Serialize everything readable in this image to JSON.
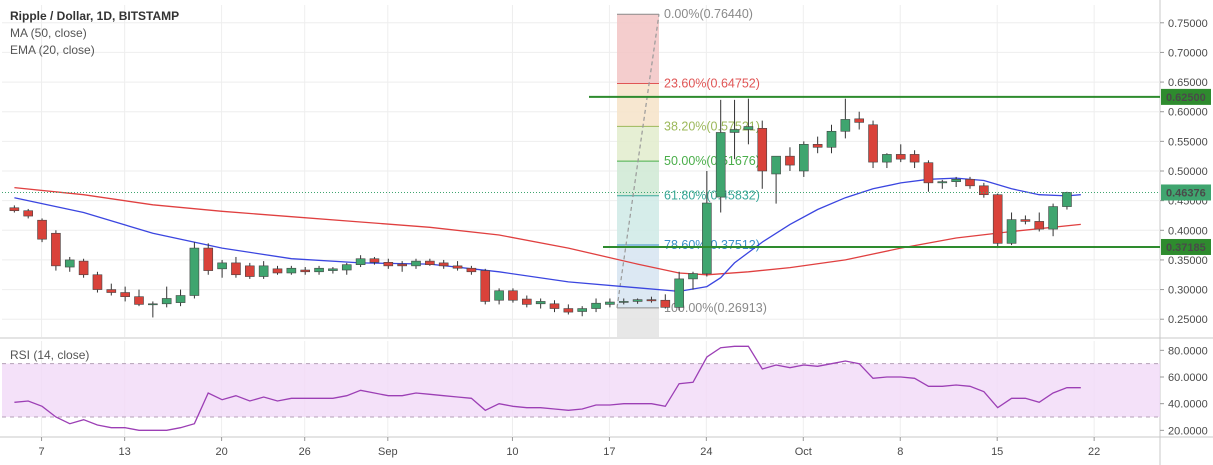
{
  "legend": {
    "title": "Ripple / Dollar, 1D, BITSTAMP",
    "ma": "MA (50, close)",
    "ema": "EMA (20, close)",
    "rsi": "RSI (14, close)"
  },
  "colors": {
    "up": "#3fa56f",
    "down": "#d9423a",
    "wick": "#333333",
    "ema": "#3b46e0",
    "ma": "#e04040",
    "hline": "#2e8b2e",
    "rsi": "#9c3fb5",
    "rsi_band": "#f1d9f7"
  },
  "chart_data": [
    {
      "type": "candlestick",
      "title": "Ripple / Dollar, 1D, BITSTAMP",
      "x_axis": {
        "ticks": [
          "7",
          "13",
          "20",
          "26",
          "Sep",
          "10",
          "17",
          "24",
          "Oct",
          "8",
          "15",
          "22"
        ],
        "tick_days": [
          7,
          13,
          20,
          26,
          32,
          41,
          48,
          55,
          62,
          69,
          76,
          83
        ]
      },
      "y_axis": {
        "ticks": [
          "0.25000",
          "0.30000",
          "0.35000",
          "0.40000",
          "0.45000",
          "0.50000",
          "0.55000",
          "0.60000",
          "0.65000",
          "0.70000",
          "0.75000"
        ],
        "ylim": [
          0.22,
          0.78
        ]
      },
      "price_labels": [
        {
          "text": "0.62500",
          "value": 0.625,
          "color": "#2e8b2e"
        },
        {
          "text": "0.46376",
          "value": 0.46376,
          "color": "#3fa56f"
        },
        {
          "text": "0.37185",
          "value": 0.37185,
          "color": "#2e8b2e"
        }
      ],
      "horizontal_lines": [
        0.625,
        0.37185
      ],
      "current_price": 0.46376,
      "candles": [
        {
          "o": 0.438,
          "h": 0.442,
          "l": 0.43,
          "c": 0.433
        },
        {
          "o": 0.433,
          "h": 0.436,
          "l": 0.42,
          "c": 0.424
        },
        {
          "o": 0.417,
          "h": 0.42,
          "l": 0.38,
          "c": 0.385
        },
        {
          "o": 0.395,
          "h": 0.4,
          "l": 0.332,
          "c": 0.34
        },
        {
          "o": 0.338,
          "h": 0.355,
          "l": 0.33,
          "c": 0.35
        },
        {
          "o": 0.348,
          "h": 0.352,
          "l": 0.32,
          "c": 0.325
        },
        {
          "o": 0.325,
          "h": 0.33,
          "l": 0.295,
          "c": 0.3
        },
        {
          "o": 0.3,
          "h": 0.31,
          "l": 0.29,
          "c": 0.295
        },
        {
          "o": 0.295,
          "h": 0.305,
          "l": 0.28,
          "c": 0.288
        },
        {
          "o": 0.288,
          "h": 0.3,
          "l": 0.272,
          "c": 0.275
        },
        {
          "o": 0.275,
          "h": 0.28,
          "l": 0.253,
          "c": 0.276
        },
        {
          "o": 0.276,
          "h": 0.305,
          "l": 0.27,
          "c": 0.285
        },
        {
          "o": 0.278,
          "h": 0.3,
          "l": 0.272,
          "c": 0.29
        },
        {
          "o": 0.29,
          "h": 0.38,
          "l": 0.285,
          "c": 0.37
        },
        {
          "o": 0.37,
          "h": 0.378,
          "l": 0.325,
          "c": 0.332
        },
        {
          "o": 0.335,
          "h": 0.35,
          "l": 0.32,
          "c": 0.345
        },
        {
          "o": 0.345,
          "h": 0.355,
          "l": 0.32,
          "c": 0.325
        },
        {
          "o": 0.34,
          "h": 0.345,
          "l": 0.318,
          "c": 0.322
        },
        {
          "o": 0.322,
          "h": 0.348,
          "l": 0.318,
          "c": 0.34
        },
        {
          "o": 0.335,
          "h": 0.34,
          "l": 0.325,
          "c": 0.328
        },
        {
          "o": 0.328,
          "h": 0.34,
          "l": 0.325,
          "c": 0.336
        },
        {
          "o": 0.333,
          "h": 0.338,
          "l": 0.325,
          "c": 0.33
        },
        {
          "o": 0.33,
          "h": 0.34,
          "l": 0.325,
          "c": 0.336
        },
        {
          "o": 0.332,
          "h": 0.338,
          "l": 0.327,
          "c": 0.335
        },
        {
          "o": 0.333,
          "h": 0.345,
          "l": 0.325,
          "c": 0.342
        },
        {
          "o": 0.342,
          "h": 0.358,
          "l": 0.338,
          "c": 0.352
        },
        {
          "o": 0.352,
          "h": 0.355,
          "l": 0.342,
          "c": 0.346
        },
        {
          "o": 0.346,
          "h": 0.352,
          "l": 0.335,
          "c": 0.34
        },
        {
          "o": 0.343,
          "h": 0.348,
          "l": 0.33,
          "c": 0.34
        },
        {
          "o": 0.34,
          "h": 0.352,
          "l": 0.335,
          "c": 0.348
        },
        {
          "o": 0.348,
          "h": 0.352,
          "l": 0.34,
          "c": 0.342
        },
        {
          "o": 0.345,
          "h": 0.35,
          "l": 0.335,
          "c": 0.34
        },
        {
          "o": 0.34,
          "h": 0.348,
          "l": 0.332,
          "c": 0.336
        },
        {
          "o": 0.336,
          "h": 0.34,
          "l": 0.325,
          "c": 0.33
        },
        {
          "o": 0.332,
          "h": 0.335,
          "l": 0.275,
          "c": 0.28
        },
        {
          "o": 0.282,
          "h": 0.302,
          "l": 0.275,
          "c": 0.298
        },
        {
          "o": 0.298,
          "h": 0.302,
          "l": 0.278,
          "c": 0.282
        },
        {
          "o": 0.284,
          "h": 0.29,
          "l": 0.27,
          "c": 0.275
        },
        {
          "o": 0.276,
          "h": 0.285,
          "l": 0.268,
          "c": 0.28
        },
        {
          "o": 0.276,
          "h": 0.282,
          "l": 0.262,
          "c": 0.268
        },
        {
          "o": 0.268,
          "h": 0.275,
          "l": 0.258,
          "c": 0.262
        },
        {
          "o": 0.263,
          "h": 0.272,
          "l": 0.255,
          "c": 0.268
        },
        {
          "o": 0.268,
          "h": 0.285,
          "l": 0.262,
          "c": 0.277
        },
        {
          "o": 0.275,
          "h": 0.285,
          "l": 0.27,
          "c": 0.279
        },
        {
          "o": 0.279,
          "h": 0.285,
          "l": 0.275,
          "c": 0.28
        },
        {
          "o": 0.28,
          "h": 0.285,
          "l": 0.276,
          "c": 0.283
        },
        {
          "o": 0.283,
          "h": 0.288,
          "l": 0.278,
          "c": 0.281
        },
        {
          "o": 0.282,
          "h": 0.292,
          "l": 0.268,
          "c": 0.27
        },
        {
          "o": 0.27,
          "h": 0.33,
          "l": 0.265,
          "c": 0.318
        },
        {
          "o": 0.318,
          "h": 0.33,
          "l": 0.3,
          "c": 0.327
        },
        {
          "o": 0.327,
          "h": 0.5,
          "l": 0.322,
          "c": 0.446
        },
        {
          "o": 0.456,
          "h": 0.62,
          "l": 0.43,
          "c": 0.565
        },
        {
          "o": 0.565,
          "h": 0.62,
          "l": 0.52,
          "c": 0.57
        },
        {
          "o": 0.57,
          "h": 0.622,
          "l": 0.545,
          "c": 0.575
        },
        {
          "o": 0.572,
          "h": 0.585,
          "l": 0.47,
          "c": 0.5
        },
        {
          "o": 0.495,
          "h": 0.525,
          "l": 0.445,
          "c": 0.525
        },
        {
          "o": 0.525,
          "h": 0.54,
          "l": 0.5,
          "c": 0.51
        },
        {
          "o": 0.5,
          "h": 0.55,
          "l": 0.49,
          "c": 0.545
        },
        {
          "o": 0.545,
          "h": 0.558,
          "l": 0.53,
          "c": 0.54
        },
        {
          "o": 0.54,
          "h": 0.578,
          "l": 0.53,
          "c": 0.567
        },
        {
          "o": 0.567,
          "h": 0.622,
          "l": 0.555,
          "c": 0.587
        },
        {
          "o": 0.588,
          "h": 0.6,
          "l": 0.57,
          "c": 0.582
        },
        {
          "o": 0.578,
          "h": 0.585,
          "l": 0.505,
          "c": 0.515
        },
        {
          "o": 0.515,
          "h": 0.53,
          "l": 0.505,
          "c": 0.528
        },
        {
          "o": 0.528,
          "h": 0.545,
          "l": 0.515,
          "c": 0.52
        },
        {
          "o": 0.528,
          "h": 0.535,
          "l": 0.505,
          "c": 0.515
        },
        {
          "o": 0.514,
          "h": 0.518,
          "l": 0.465,
          "c": 0.48
        },
        {
          "o": 0.48,
          "h": 0.485,
          "l": 0.47,
          "c": 0.482
        },
        {
          "o": 0.482,
          "h": 0.49,
          "l": 0.473,
          "c": 0.486
        },
        {
          "o": 0.486,
          "h": 0.49,
          "l": 0.47,
          "c": 0.475
        },
        {
          "o": 0.475,
          "h": 0.48,
          "l": 0.455,
          "c": 0.46
        },
        {
          "o": 0.46,
          "h": 0.462,
          "l": 0.37,
          "c": 0.378
        },
        {
          "o": 0.378,
          "h": 0.43,
          "l": 0.375,
          "c": 0.418
        },
        {
          "o": 0.418,
          "h": 0.425,
          "l": 0.41,
          "c": 0.415
        },
        {
          "o": 0.415,
          "h": 0.43,
          "l": 0.398,
          "c": 0.402
        },
        {
          "o": 0.402,
          "h": 0.445,
          "l": 0.39,
          "c": 0.44
        },
        {
          "o": 0.44,
          "h": 0.465,
          "l": 0.435,
          "c": 0.464
        }
      ],
      "ema20": [
        [
          0,
          0.455
        ],
        [
          5,
          0.43
        ],
        [
          10,
          0.395
        ],
        [
          15,
          0.37
        ],
        [
          20,
          0.352
        ],
        [
          25,
          0.345
        ],
        [
          30,
          0.343
        ],
        [
          35,
          0.33
        ],
        [
          40,
          0.313
        ],
        [
          45,
          0.303
        ],
        [
          48,
          0.297
        ],
        [
          50,
          0.305
        ],
        [
          51,
          0.32
        ],
        [
          52,
          0.345
        ],
        [
          54,
          0.38
        ],
        [
          56,
          0.41
        ],
        [
          58,
          0.435
        ],
        [
          60,
          0.455
        ],
        [
          62,
          0.47
        ],
        [
          64,
          0.48
        ],
        [
          66,
          0.486
        ],
        [
          68,
          0.488
        ],
        [
          70,
          0.484
        ],
        [
          72,
          0.47
        ],
        [
          74,
          0.46
        ],
        [
          76,
          0.458
        ],
        [
          77,
          0.46
        ]
      ],
      "ma50": [
        [
          0,
          0.472
        ],
        [
          5,
          0.46
        ],
        [
          10,
          0.443
        ],
        [
          15,
          0.432
        ],
        [
          20,
          0.423
        ],
        [
          25,
          0.414
        ],
        [
          30,
          0.405
        ],
        [
          35,
          0.392
        ],
        [
          40,
          0.37
        ],
        [
          45,
          0.343
        ],
        [
          48,
          0.328
        ],
        [
          50,
          0.325
        ],
        [
          53,
          0.33
        ],
        [
          56,
          0.337
        ],
        [
          60,
          0.35
        ],
        [
          64,
          0.37
        ],
        [
          68,
          0.387
        ],
        [
          72,
          0.398
        ],
        [
          77,
          0.41
        ]
      ],
      "fib_levels": [
        {
          "label": "0.00%(0.76440)",
          "value": 0.7644,
          "color": "#8a8a8a"
        },
        {
          "label": "23.60%(0.64752)",
          "value": 0.64752,
          "color": "#e05555"
        },
        {
          "label": "38.20%(0.57521)",
          "value": 0.57521,
          "color": "#9cb85a"
        },
        {
          "label": "50.00%(0.51676)",
          "value": 0.51676,
          "color": "#4aae4a"
        },
        {
          "label": "61.80%(0.45832)",
          "value": 0.45832,
          "color": "#3aa89a"
        },
        {
          "label": "78.60%(0.37512)",
          "value": 0.37512,
          "color": "#3a8fc8"
        },
        {
          "label": "100.00%(0.26913)",
          "value": 0.26913,
          "color": "#8a8a8a"
        }
      ]
    },
    {
      "type": "line",
      "title": "RSI (14, close)",
      "y_axis": {
        "ticks": [
          "20.0000",
          "40.0000",
          "60.0000",
          "80.0000"
        ],
        "ylim": [
          15,
          87
        ]
      },
      "bands": [
        30,
        70
      ],
      "values": [
        [
          0,
          41
        ],
        [
          1,
          42
        ],
        [
          2,
          38
        ],
        [
          3,
          30
        ],
        [
          4,
          25
        ],
        [
          5,
          28
        ],
        [
          6,
          24
        ],
        [
          7,
          22
        ],
        [
          8,
          22
        ],
        [
          9,
          20
        ],
        [
          10,
          20
        ],
        [
          11,
          20
        ],
        [
          12,
          22
        ],
        [
          13,
          25
        ],
        [
          14,
          48
        ],
        [
          15,
          43
        ],
        [
          16,
          46
        ],
        [
          17,
          42
        ],
        [
          18,
          45
        ],
        [
          19,
          42
        ],
        [
          20,
          44
        ],
        [
          21,
          44
        ],
        [
          22,
          44
        ],
        [
          23,
          44
        ],
        [
          24,
          46
        ],
        [
          25,
          50
        ],
        [
          26,
          48
        ],
        [
          27,
          46
        ],
        [
          28,
          46
        ],
        [
          29,
          48
        ],
        [
          30,
          47
        ],
        [
          31,
          46
        ],
        [
          32,
          45
        ],
        [
          33,
          44
        ],
        [
          34,
          35
        ],
        [
          35,
          40
        ],
        [
          36,
          38
        ],
        [
          37,
          37
        ],
        [
          38,
          37
        ],
        [
          39,
          36
        ],
        [
          40,
          35
        ],
        [
          41,
          36
        ],
        [
          42,
          39
        ],
        [
          43,
          39
        ],
        [
          44,
          40
        ],
        [
          45,
          40
        ],
        [
          46,
          40
        ],
        [
          47,
          38
        ],
        [
          48,
          55
        ],
        [
          49,
          56
        ],
        [
          50,
          75
        ],
        [
          51,
          82
        ],
        [
          52,
          83
        ],
        [
          53,
          83
        ],
        [
          54,
          66
        ],
        [
          55,
          69
        ],
        [
          56,
          67
        ],
        [
          57,
          69
        ],
        [
          58,
          68
        ],
        [
          59,
          70
        ],
        [
          60,
          72
        ],
        [
          61,
          70
        ],
        [
          62,
          59
        ],
        [
          63,
          60
        ],
        [
          64,
          60
        ],
        [
          65,
          59
        ],
        [
          66,
          53
        ],
        [
          67,
          53
        ],
        [
          68,
          54
        ],
        [
          69,
          53
        ],
        [
          70,
          49
        ],
        [
          71,
          37
        ],
        [
          72,
          44
        ],
        [
          73,
          44
        ],
        [
          74,
          41
        ],
        [
          75,
          48
        ],
        [
          76,
          52
        ],
        [
          77,
          52
        ]
      ]
    }
  ]
}
